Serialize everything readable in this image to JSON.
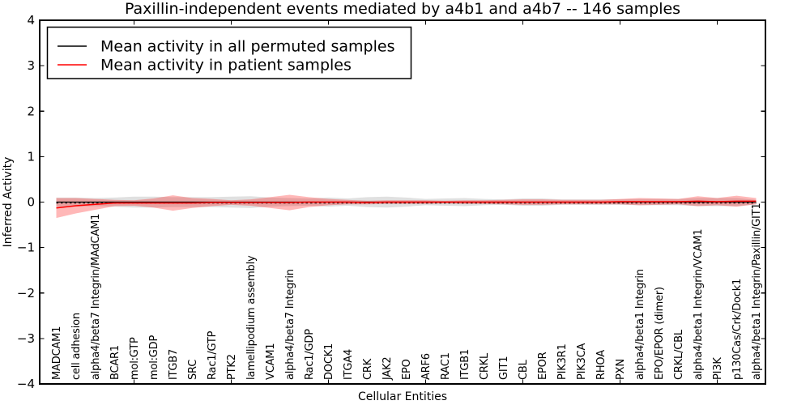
{
  "chart_data": {
    "type": "line",
    "title": "Paxillin-independent events mediated by a4b1 and a4b7 -- 146 samples",
    "xlabel": "Cellular Entities",
    "ylabel": "Inferred Activity",
    "ylim": [
      -4,
      4
    ],
    "yticks": [
      -4,
      -3,
      -2,
      -1,
      0,
      1,
      2,
      3,
      4
    ],
    "grid": false,
    "legend_position": "upper-left",
    "categories": [
      "MADCAM1",
      "cell adhesion",
      "alpha4/beta7 Integrin/MAdCAM1",
      "BCAR1",
      "mol:GTP",
      "mol:GDP",
      "ITGB7",
      "SRC",
      "Rac1/GTP",
      "PTK2",
      "lamellipodium assembly",
      "VCAM1",
      "alpha4/beta7 Integrin",
      "Rac1/GDP",
      "DOCK1",
      "ITGA4",
      "CRK",
      "JAK2",
      "EPO",
      "ARF6",
      "RAC1",
      "ITGB1",
      "CRKL",
      "GIT1",
      "CBL",
      "EPOR",
      "PIK3R1",
      "PIK3CA",
      "RHOA",
      "PXN",
      "alpha4/beta1 Integrin",
      "EPO/EPOR (dimer)",
      "CRKL/CBL",
      "alpha4/beta1 Integrin/VCAM1",
      "PI3K",
      "p130Cas/Crk/Dock1",
      "alpha4/beta1 Integrin/Paxillin/GIT1"
    ],
    "series": [
      {
        "name": "Mean activity in all permuted samples",
        "color": "#000000",
        "band_color": "rgba(0,0,0,0.12)",
        "values": [
          0,
          0,
          0,
          0,
          0,
          0,
          0,
          0,
          0,
          0,
          0,
          0,
          0,
          0,
          0,
          0,
          0,
          0,
          0,
          0,
          0,
          0,
          0,
          0,
          0,
          0,
          0,
          0,
          0,
          0,
          0,
          0,
          0,
          0,
          0,
          0,
          0
        ],
        "band_halfwidth": [
          0.1,
          0.1,
          0.09,
          0.1,
          0.12,
          0.12,
          0.11,
          0.11,
          0.11,
          0.12,
          0.13,
          0.1,
          0.09,
          0.08,
          0.1,
          0.08,
          0.11,
          0.12,
          0.1,
          0.07,
          0.08,
          0.09,
          0.07,
          0.06,
          0.08,
          0.08,
          0.06,
          0.06,
          0.06,
          0.06,
          0.07,
          0.07,
          0.07,
          0.09,
          0.09,
          0.09,
          0.05
        ]
      },
      {
        "name": "Mean activity in patient samples",
        "color": "#ff0000",
        "band_color": "rgba(255,0,0,0.28)",
        "values": [
          -0.13,
          -0.08,
          -0.05,
          -0.02,
          -0.02,
          -0.02,
          -0.02,
          -0.02,
          -0.01,
          -0.01,
          -0.01,
          -0.01,
          -0.01,
          0,
          0,
          0,
          -0.01,
          0,
          0,
          0,
          0,
          0,
          0,
          0,
          0,
          0,
          0,
          0,
          0,
          0.01,
          0.01,
          0.01,
          0.01,
          0.02,
          0.01,
          0.02,
          0.02
        ],
        "band_halfwidth": [
          0.22,
          0.17,
          0.12,
          0.07,
          0.06,
          0.1,
          0.17,
          0.11,
          0.08,
          0.05,
          0.07,
          0.12,
          0.17,
          0.11,
          0.07,
          0.05,
          0.04,
          0.04,
          0.04,
          0.04,
          0.03,
          0.04,
          0.04,
          0.05,
          0.06,
          0.06,
          0.05,
          0.05,
          0.05,
          0.06,
          0.08,
          0.07,
          0.06,
          0.11,
          0.08,
          0.12,
          0.07
        ]
      }
    ],
    "zero_line": {
      "style": "dashed",
      "color": "#000000",
      "y": 0
    }
  }
}
